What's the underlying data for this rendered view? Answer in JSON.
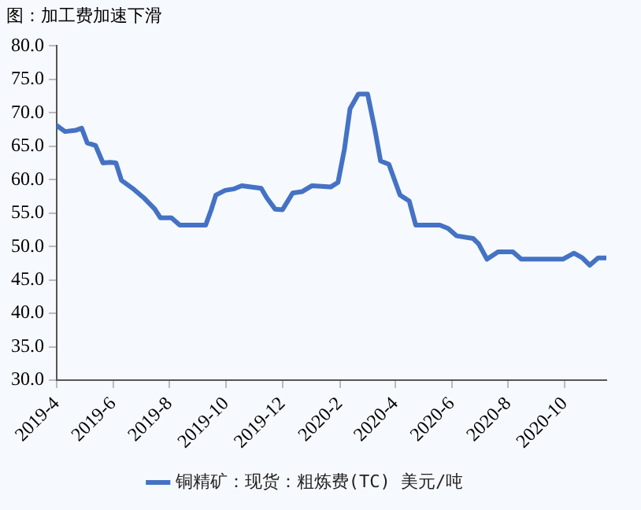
{
  "chart_data": {
    "type": "line",
    "title": "图：加工费加速下滑",
    "xlim": [
      "2019-04-01",
      "2020-11-15"
    ],
    "xticks": [
      {
        "value": "2019-04",
        "label": "2019-4"
      },
      {
        "value": "2019-06",
        "label": "2019-6"
      },
      {
        "value": "2019-08",
        "label": "2019-8"
      },
      {
        "value": "2019-10",
        "label": "2019-10"
      },
      {
        "value": "2019-12",
        "label": "2019-12"
      },
      {
        "value": "2020-02",
        "label": "2020-2"
      },
      {
        "value": "2020-04",
        "label": "2020-4"
      },
      {
        "value": "2020-06",
        "label": "2020-6"
      },
      {
        "value": "2020-08",
        "label": "2020-8"
      },
      {
        "value": "2020-10",
        "label": "2020-10"
      }
    ],
    "ylim": [
      30,
      80
    ],
    "yticks": [
      {
        "value": 30,
        "label": "30.0"
      },
      {
        "value": 35,
        "label": "35.0"
      },
      {
        "value": 40,
        "label": "40.0"
      },
      {
        "value": 45,
        "label": "45.0"
      },
      {
        "value": 50,
        "label": "50.0"
      },
      {
        "value": 55,
        "label": "55.0"
      },
      {
        "value": 60,
        "label": "60.0"
      },
      {
        "value": 65,
        "label": "65.0"
      },
      {
        "value": 70,
        "label": "70.0"
      },
      {
        "value": 75,
        "label": "75.0"
      },
      {
        "value": 80,
        "label": "80.0"
      }
    ],
    "grid": false,
    "legend": "bottom",
    "marker": "none",
    "line_style": "solid",
    "x": [
      "2019-04-01",
      "2019-04-10",
      "2019-04-22",
      "2019-04-28",
      "2019-05-04",
      "2019-05-13",
      "2019-05-21",
      "2019-05-29",
      "2019-06-04",
      "2019-06-10",
      "2019-06-22",
      "2019-07-04",
      "2019-07-16",
      "2019-07-22",
      "2019-08-03",
      "2019-08-12",
      "2019-09-09",
      "2019-09-15",
      "2019-09-20",
      "2019-09-30",
      "2019-10-09",
      "2019-10-18",
      "2019-11-08",
      "2019-11-14",
      "2019-11-23",
      "2019-12-01",
      "2019-12-12",
      "2019-12-22",
      "2020-01-02",
      "2020-01-22",
      "2020-01-30",
      "2020-02-06",
      "2020-02-12",
      "2020-02-21",
      "2020-03-02",
      "2020-03-10",
      "2020-03-16",
      "2020-03-25",
      "2020-04-06",
      "2020-04-16",
      "2020-04-23",
      "2020-05-01",
      "2020-05-19",
      "2020-05-28",
      "2020-06-06",
      "2020-06-24",
      "2020-06-30",
      "2020-07-09",
      "2020-07-21",
      "2020-08-06",
      "2020-08-15",
      "2020-09-29",
      "2020-10-11",
      "2020-10-20",
      "2020-10-28",
      "2020-11-06",
      "2020-11-14"
    ],
    "series": [
      {
        "name": "铜精矿：现货：粗炼费(TC) 美元/吨",
        "color": "#4472c4",
        "values": [
          68.1,
          67.2,
          67.4,
          67.7,
          65.5,
          65.1,
          62.5,
          62.6,
          62.5,
          59.9,
          58.7,
          57.3,
          55.6,
          54.3,
          54.3,
          53.2,
          53.2,
          55.5,
          57.7,
          58.4,
          58.6,
          59.1,
          58.7,
          57.3,
          55.6,
          55.5,
          58.0,
          58.2,
          59.1,
          58.9,
          59.6,
          64.6,
          70.6,
          72.8,
          72.8,
          67.4,
          62.8,
          62.3,
          57.7,
          56.8,
          53.2,
          53.2,
          53.2,
          52.7,
          51.6,
          51.2,
          50.4,
          48.1,
          49.2,
          49.2,
          48.1,
          48.1,
          49.0,
          48.3,
          47.2,
          48.3,
          48.3
        ]
      }
    ]
  }
}
